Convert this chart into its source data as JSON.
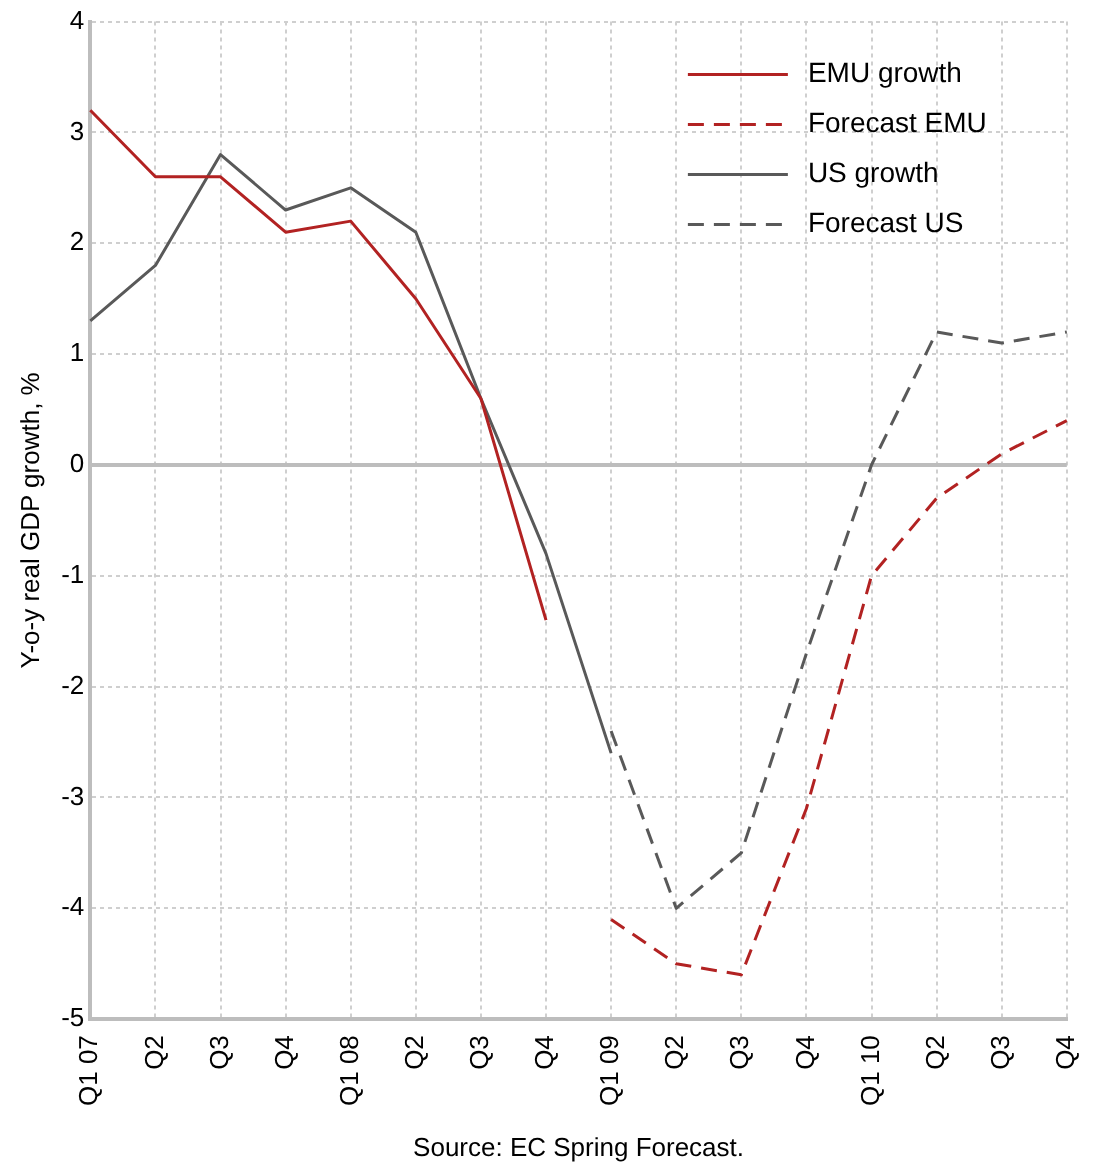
{
  "chart_data": {
    "type": "line",
    "ylabel": "Y-o-y real GDP growth, %",
    "annotations": [
      "Source: EC Spring Forecast."
    ],
    "categories": [
      "Q1 07",
      "Q2",
      "Q3",
      "Q4",
      "Q1 08",
      "Q2",
      "Q3",
      "Q4",
      "Q1 09",
      "Q2",
      "Q3",
      "Q4",
      "Q1 10",
      "Q2",
      "Q3",
      "Q4"
    ],
    "series": [
      {
        "name": "EMU growth",
        "color": "#b22222",
        "line_style": "solid",
        "values": [
          3.2,
          2.6,
          2.6,
          2.1,
          2.2,
          1.5,
          0.6,
          -1.4,
          null,
          null,
          null,
          null,
          null,
          null,
          null,
          null
        ]
      },
      {
        "name": "Forecast EMU",
        "color": "#b22222",
        "line_style": "dashed",
        "values": [
          null,
          null,
          null,
          null,
          null,
          null,
          null,
          null,
          -4.1,
          -4.5,
          -4.6,
          -3.1,
          -1.0,
          -0.3,
          0.1,
          0.4
        ]
      },
      {
        "name": "US growth",
        "color": "#595959",
        "line_style": "solid",
        "values": [
          1.3,
          1.8,
          2.8,
          2.3,
          2.5,
          2.1,
          0.6,
          -0.8,
          -2.6,
          null,
          null,
          null,
          null,
          null,
          null,
          null
        ]
      },
      {
        "name": "Forecast US",
        "color": "#595959",
        "line_style": "dashed",
        "values": [
          null,
          null,
          null,
          null,
          null,
          null,
          null,
          null,
          -2.4,
          -4.0,
          -3.5,
          -1.7,
          0.0,
          1.2,
          1.1,
          1.2
        ]
      }
    ],
    "ylim": [
      -5,
      4
    ],
    "yticks": [
      -5,
      -4,
      -3,
      -2,
      -1,
      0,
      1,
      2,
      3,
      4
    ],
    "grid": true,
    "legend": "top right",
    "marker": "none"
  }
}
